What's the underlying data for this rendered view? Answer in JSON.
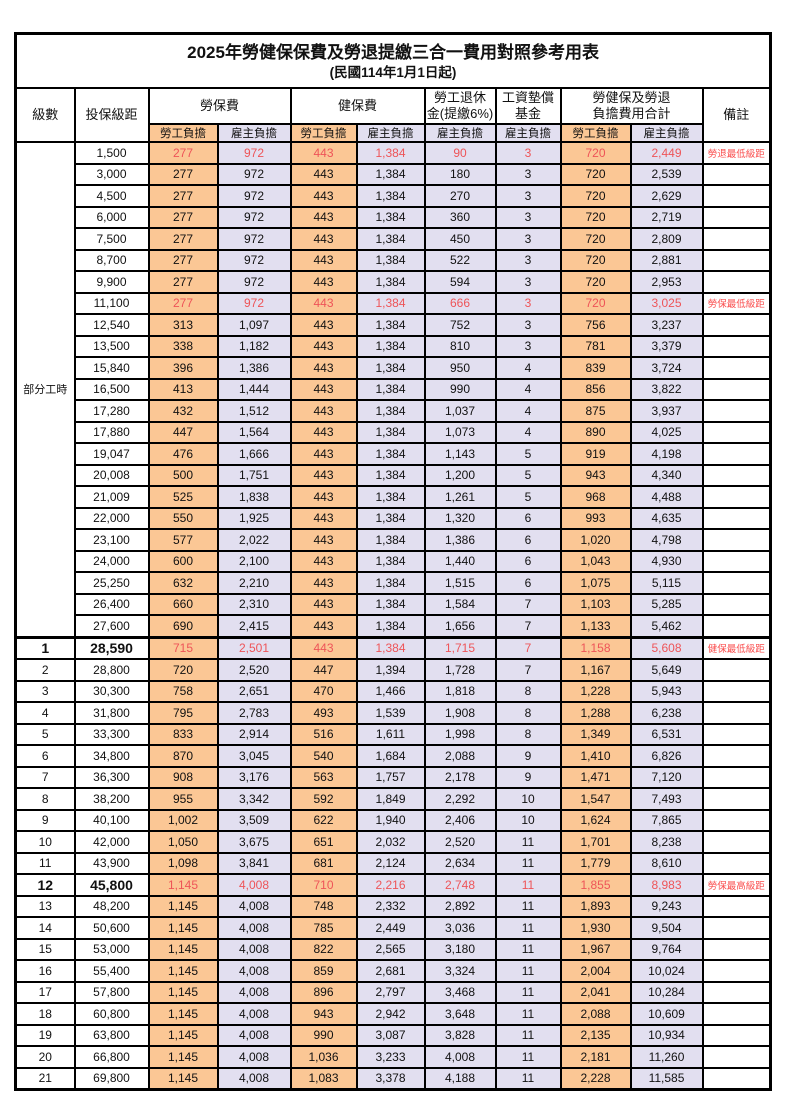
{
  "title": "2025年勞健保保費及勞退提繳三合一費用對照參考用表",
  "subtitle": "(民國114年1月1日起)",
  "header": {
    "level": "級數",
    "bracket": "投保級距",
    "labor_insurance": "勞保費",
    "health_insurance": "健保費",
    "pension_line1": "勞工退休",
    "pension_line2": "金(提繳6%)",
    "wage_fund_line1": "工資墊償",
    "wage_fund_line2": "基金",
    "total_line1": "勞健保及勞退",
    "total_line2": "負擔費用合計",
    "note": "備註",
    "employee": "勞工負擔",
    "employer": "雇主負擔"
  },
  "part_time_label": "部分工時",
  "colors": {
    "employee_bg": "#FBC795",
    "employer_bg": "#E2DFF0",
    "red_value_text": "#EE5458",
    "red_note_text": "#FA4B4B"
  },
  "rows": [
    {
      "level": "",
      "bracket": "1,500",
      "values": [
        "277",
        "972",
        "443",
        "1,384",
        "90",
        "3",
        "720",
        "2,449"
      ],
      "note": "勞退最低級距",
      "red": true
    },
    {
      "level": "",
      "bracket": "3,000",
      "values": [
        "277",
        "972",
        "443",
        "1,384",
        "180",
        "3",
        "720",
        "2,539"
      ],
      "note": ""
    },
    {
      "level": "",
      "bracket": "4,500",
      "values": [
        "277",
        "972",
        "443",
        "1,384",
        "270",
        "3",
        "720",
        "2,629"
      ],
      "note": ""
    },
    {
      "level": "",
      "bracket": "6,000",
      "values": [
        "277",
        "972",
        "443",
        "1,384",
        "360",
        "3",
        "720",
        "2,719"
      ],
      "note": ""
    },
    {
      "level": "",
      "bracket": "7,500",
      "values": [
        "277",
        "972",
        "443",
        "1,384",
        "450",
        "3",
        "720",
        "2,809"
      ],
      "note": ""
    },
    {
      "level": "",
      "bracket": "8,700",
      "values": [
        "277",
        "972",
        "443",
        "1,384",
        "522",
        "3",
        "720",
        "2,881"
      ],
      "note": ""
    },
    {
      "level": "",
      "bracket": "9,900",
      "values": [
        "277",
        "972",
        "443",
        "1,384",
        "594",
        "3",
        "720",
        "2,953"
      ],
      "note": ""
    },
    {
      "level": "",
      "bracket": "11,100",
      "values": [
        "277",
        "972",
        "443",
        "1,384",
        "666",
        "3",
        "720",
        "3,025"
      ],
      "note": "勞保最低級距",
      "red": true
    },
    {
      "level": "",
      "bracket": "12,540",
      "values": [
        "313",
        "1,097",
        "443",
        "1,384",
        "752",
        "3",
        "756",
        "3,237"
      ],
      "note": ""
    },
    {
      "level": "",
      "bracket": "13,500",
      "values": [
        "338",
        "1,182",
        "443",
        "1,384",
        "810",
        "3",
        "781",
        "3,379"
      ],
      "note": ""
    },
    {
      "level": "",
      "bracket": "15,840",
      "values": [
        "396",
        "1,386",
        "443",
        "1,384",
        "950",
        "4",
        "839",
        "3,724"
      ],
      "note": ""
    },
    {
      "level": "",
      "bracket": "16,500",
      "values": [
        "413",
        "1,444",
        "443",
        "1,384",
        "990",
        "4",
        "856",
        "3,822"
      ],
      "note": ""
    },
    {
      "level": "",
      "bracket": "17,280",
      "values": [
        "432",
        "1,512",
        "443",
        "1,384",
        "1,037",
        "4",
        "875",
        "3,937"
      ],
      "note": ""
    },
    {
      "level": "",
      "bracket": "17,880",
      "values": [
        "447",
        "1,564",
        "443",
        "1,384",
        "1,073",
        "4",
        "890",
        "4,025"
      ],
      "note": ""
    },
    {
      "level": "",
      "bracket": "19,047",
      "values": [
        "476",
        "1,666",
        "443",
        "1,384",
        "1,143",
        "5",
        "919",
        "4,198"
      ],
      "note": ""
    },
    {
      "level": "",
      "bracket": "20,008",
      "values": [
        "500",
        "1,751",
        "443",
        "1,384",
        "1,200",
        "5",
        "943",
        "4,340"
      ],
      "note": ""
    },
    {
      "level": "",
      "bracket": "21,009",
      "values": [
        "525",
        "1,838",
        "443",
        "1,384",
        "1,261",
        "5",
        "968",
        "4,488"
      ],
      "note": ""
    },
    {
      "level": "",
      "bracket": "22,000",
      "values": [
        "550",
        "1,925",
        "443",
        "1,384",
        "1,320",
        "6",
        "993",
        "4,635"
      ],
      "note": ""
    },
    {
      "level": "",
      "bracket": "23,100",
      "values": [
        "577",
        "2,022",
        "443",
        "1,384",
        "1,386",
        "6",
        "1,020",
        "4,798"
      ],
      "note": ""
    },
    {
      "level": "",
      "bracket": "24,000",
      "values": [
        "600",
        "2,100",
        "443",
        "1,384",
        "1,440",
        "6",
        "1,043",
        "4,930"
      ],
      "note": ""
    },
    {
      "level": "",
      "bracket": "25,250",
      "values": [
        "632",
        "2,210",
        "443",
        "1,384",
        "1,515",
        "6",
        "1,075",
        "5,115"
      ],
      "note": ""
    },
    {
      "level": "",
      "bracket": "26,400",
      "values": [
        "660",
        "2,310",
        "443",
        "1,384",
        "1,584",
        "7",
        "1,103",
        "5,285"
      ],
      "note": ""
    },
    {
      "level": "",
      "bracket": "27,600",
      "values": [
        "690",
        "2,415",
        "443",
        "1,384",
        "1,656",
        "7",
        "1,133",
        "5,462"
      ],
      "note": ""
    },
    {
      "level": "1",
      "bracket": "28,590",
      "values": [
        "715",
        "2,501",
        "443",
        "1,384",
        "1,715",
        "7",
        "1,158",
        "5,608"
      ],
      "note": "健保最低級距",
      "red": true,
      "bold": true,
      "section": true
    },
    {
      "level": "2",
      "bracket": "28,800",
      "values": [
        "720",
        "2,520",
        "447",
        "1,394",
        "1,728",
        "7",
        "1,167",
        "5,649"
      ],
      "note": ""
    },
    {
      "level": "3",
      "bracket": "30,300",
      "values": [
        "758",
        "2,651",
        "470",
        "1,466",
        "1,818",
        "8",
        "1,228",
        "5,943"
      ],
      "note": ""
    },
    {
      "level": "4",
      "bracket": "31,800",
      "values": [
        "795",
        "2,783",
        "493",
        "1,539",
        "1,908",
        "8",
        "1,288",
        "6,238"
      ],
      "note": ""
    },
    {
      "level": "5",
      "bracket": "33,300",
      "values": [
        "833",
        "2,914",
        "516",
        "1,611",
        "1,998",
        "8",
        "1,349",
        "6,531"
      ],
      "note": ""
    },
    {
      "level": "6",
      "bracket": "34,800",
      "values": [
        "870",
        "3,045",
        "540",
        "1,684",
        "2,088",
        "9",
        "1,410",
        "6,826"
      ],
      "note": ""
    },
    {
      "level": "7",
      "bracket": "36,300",
      "values": [
        "908",
        "3,176",
        "563",
        "1,757",
        "2,178",
        "9",
        "1,471",
        "7,120"
      ],
      "note": ""
    },
    {
      "level": "8",
      "bracket": "38,200",
      "values": [
        "955",
        "3,342",
        "592",
        "1,849",
        "2,292",
        "10",
        "1,547",
        "7,493"
      ],
      "note": ""
    },
    {
      "level": "9",
      "bracket": "40,100",
      "values": [
        "1,002",
        "3,509",
        "622",
        "1,940",
        "2,406",
        "10",
        "1,624",
        "7,865"
      ],
      "note": ""
    },
    {
      "level": "10",
      "bracket": "42,000",
      "values": [
        "1,050",
        "3,675",
        "651",
        "2,032",
        "2,520",
        "11",
        "1,701",
        "8,238"
      ],
      "note": ""
    },
    {
      "level": "11",
      "bracket": "43,900",
      "values": [
        "1,098",
        "3,841",
        "681",
        "2,124",
        "2,634",
        "11",
        "1,779",
        "8,610"
      ],
      "note": ""
    },
    {
      "level": "12",
      "bracket": "45,800",
      "values": [
        "1,145",
        "4,008",
        "710",
        "2,216",
        "2,748",
        "11",
        "1,855",
        "8,983"
      ],
      "note": "勞保最高級距",
      "red": true,
      "bold": true
    },
    {
      "level": "13",
      "bracket": "48,200",
      "values": [
        "1,145",
        "4,008",
        "748",
        "2,332",
        "2,892",
        "11",
        "1,893",
        "9,243"
      ],
      "note": ""
    },
    {
      "level": "14",
      "bracket": "50,600",
      "values": [
        "1,145",
        "4,008",
        "785",
        "2,449",
        "3,036",
        "11",
        "1,930",
        "9,504"
      ],
      "note": ""
    },
    {
      "level": "15",
      "bracket": "53,000",
      "values": [
        "1,145",
        "4,008",
        "822",
        "2,565",
        "3,180",
        "11",
        "1,967",
        "9,764"
      ],
      "note": ""
    },
    {
      "level": "16",
      "bracket": "55,400",
      "values": [
        "1,145",
        "4,008",
        "859",
        "2,681",
        "3,324",
        "11",
        "2,004",
        "10,024"
      ],
      "note": ""
    },
    {
      "level": "17",
      "bracket": "57,800",
      "values": [
        "1,145",
        "4,008",
        "896",
        "2,797",
        "3,468",
        "11",
        "2,041",
        "10,284"
      ],
      "note": ""
    },
    {
      "level": "18",
      "bracket": "60,800",
      "values": [
        "1,145",
        "4,008",
        "943",
        "2,942",
        "3,648",
        "11",
        "2,088",
        "10,609"
      ],
      "note": ""
    },
    {
      "level": "19",
      "bracket": "63,800",
      "values": [
        "1,145",
        "4,008",
        "990",
        "3,087",
        "3,828",
        "11",
        "2,135",
        "10,934"
      ],
      "note": ""
    },
    {
      "level": "20",
      "bracket": "66,800",
      "values": [
        "1,145",
        "4,008",
        "1,036",
        "3,233",
        "4,008",
        "11",
        "2,181",
        "11,260"
      ],
      "note": ""
    },
    {
      "level": "21",
      "bracket": "69,800",
      "values": [
        "1,145",
        "4,008",
        "1,083",
        "3,378",
        "4,188",
        "11",
        "2,228",
        "11,585"
      ],
      "note": ""
    }
  ]
}
